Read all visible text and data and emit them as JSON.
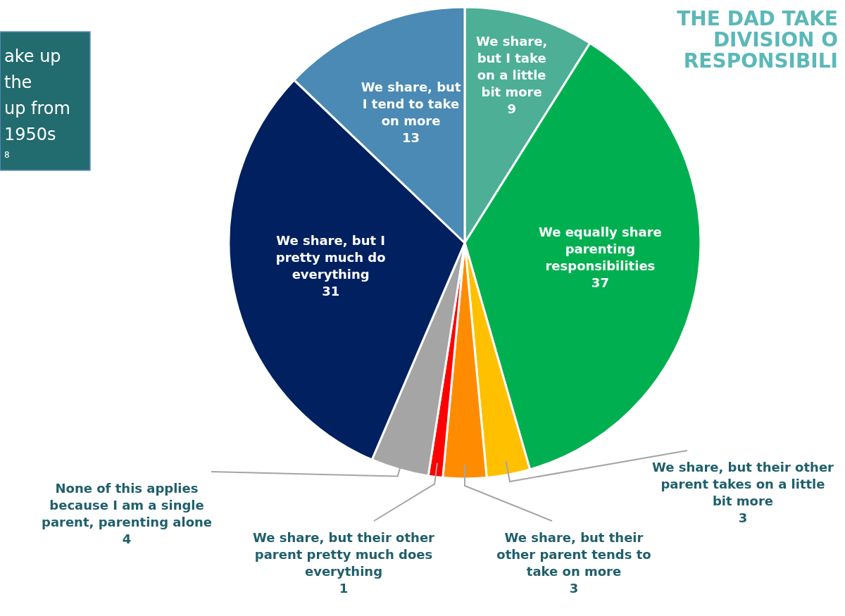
{
  "chart_data": {
    "type": "pie",
    "title": "THE DAD TAKE\nDIVISION O\nRESPONSIBILI",
    "categories": [
      "We share, but I take on a little bit more",
      "We equally share parenting responsibilities",
      "We share, but their other parent takes on a little bit more",
      "We share, but their other parent tends to take on more",
      "We share, but their other parent pretty much does everything",
      "None of this applies because I am a single parent, parenting alone",
      "We share, but I pretty much do everything",
      "We share, but I tend to take on more"
    ],
    "values": [
      9,
      37,
      3,
      3,
      1,
      4,
      31,
      13
    ],
    "colors": [
      "#4caf96",
      "#00b050",
      "#ffc000",
      "#ff8c00",
      "#ff0000",
      "#a5a5a5",
      "#002060",
      "#4a8ab4"
    ],
    "data_labels": true,
    "annotations": [
      "ake up\nthe\nup from\n1950s\n8"
    ]
  }
}
